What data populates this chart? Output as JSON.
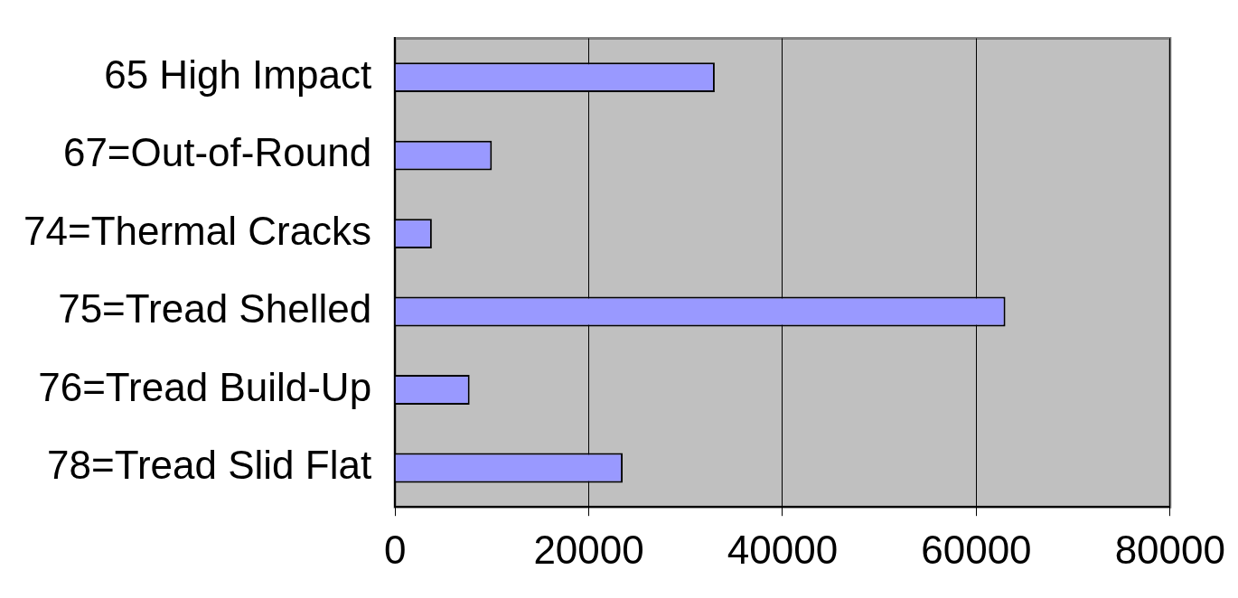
{
  "chart_data": {
    "type": "bar",
    "orientation": "horizontal",
    "categories": [
      "65 High Impact",
      "67=Out-of-Round",
      "74=Thermal Cracks",
      "75=Tread Shelled",
      "76=Tread Build-Up",
      "78=Tread Slid Flat"
    ],
    "values": [
      33000,
      10000,
      3800,
      63000,
      7700,
      23500
    ],
    "color": "#9999ff",
    "xlim": [
      0,
      80000
    ],
    "xticks": [
      0,
      20000,
      40000,
      60000,
      80000
    ],
    "grid": "x",
    "legend": false
  }
}
